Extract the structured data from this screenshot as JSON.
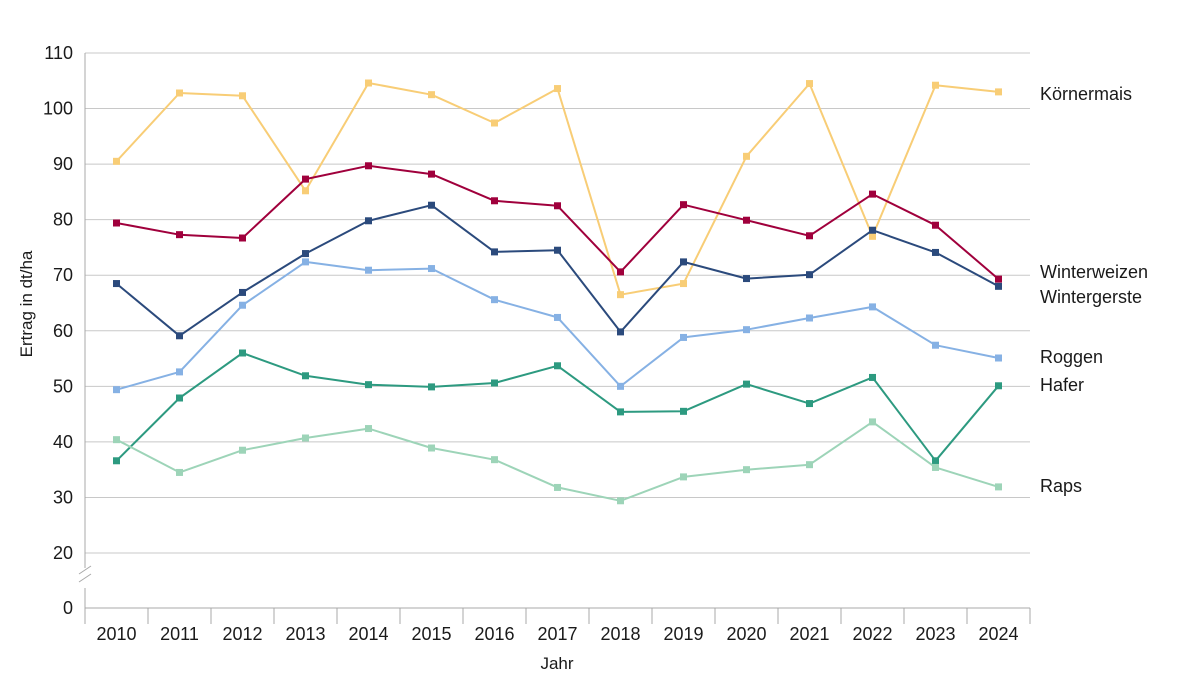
{
  "chart_data": {
    "type": "line",
    "xlabel": "Jahr",
    "ylabel": "Ertrag in dt/ha",
    "categories": [
      "2010",
      "2011",
      "2012",
      "2013",
      "2014",
      "2015",
      "2016",
      "2017",
      "2018",
      "2019",
      "2020",
      "2021",
      "2022",
      "2023",
      "2024"
    ],
    "y_ticks": [
      "20",
      "30",
      "40",
      "50",
      "60",
      "70",
      "80",
      "90",
      "100",
      "110"
    ],
    "y_zero_label": "0",
    "ylim": [
      20,
      110
    ],
    "axis_break": true,
    "grid": true,
    "legend": "labels at line ends, right",
    "series": [
      {
        "name": "Körnermais",
        "color": "#f8cd76",
        "values": [
          90.5,
          102.8,
          102.3,
          85.2,
          104.6,
          102.5,
          97.4,
          103.6,
          66.5,
          68.5,
          91.4,
          104.5,
          77.0,
          104.2,
          103.0
        ]
      },
      {
        "name": "Winterweizen",
        "color": "#a0003c",
        "values": [
          79.4,
          77.3,
          76.7,
          87.3,
          89.7,
          88.2,
          83.4,
          82.5,
          70.6,
          82.7,
          79.9,
          77.1,
          84.6,
          79.0,
          69.3
        ]
      },
      {
        "name": "Wintergerste",
        "color": "#2b4a7c",
        "values": [
          68.5,
          59.1,
          66.9,
          73.9,
          79.8,
          82.6,
          74.2,
          74.5,
          59.8,
          72.4,
          69.4,
          70.1,
          78.1,
          74.1,
          68.0
        ]
      },
      {
        "name": "Roggen",
        "color": "#86b1e4",
        "values": [
          49.4,
          52.6,
          64.6,
          72.4,
          70.9,
          71.2,
          65.6,
          62.4,
          50.0,
          58.8,
          60.2,
          62.3,
          64.3,
          57.4,
          55.1
        ]
      },
      {
        "name": "Hafer",
        "color": "#2d9a80",
        "values": [
          36.6,
          47.9,
          56.0,
          51.9,
          50.3,
          49.9,
          50.6,
          53.7,
          45.4,
          45.5,
          50.4,
          46.9,
          51.6,
          36.6,
          50.1
        ]
      },
      {
        "name": "Raps",
        "color": "#9dd4b8",
        "values": [
          40.4,
          34.5,
          38.5,
          40.7,
          42.4,
          38.9,
          36.8,
          31.8,
          29.4,
          33.7,
          35.0,
          35.9,
          43.6,
          35.4,
          31.9
        ]
      }
    ]
  }
}
